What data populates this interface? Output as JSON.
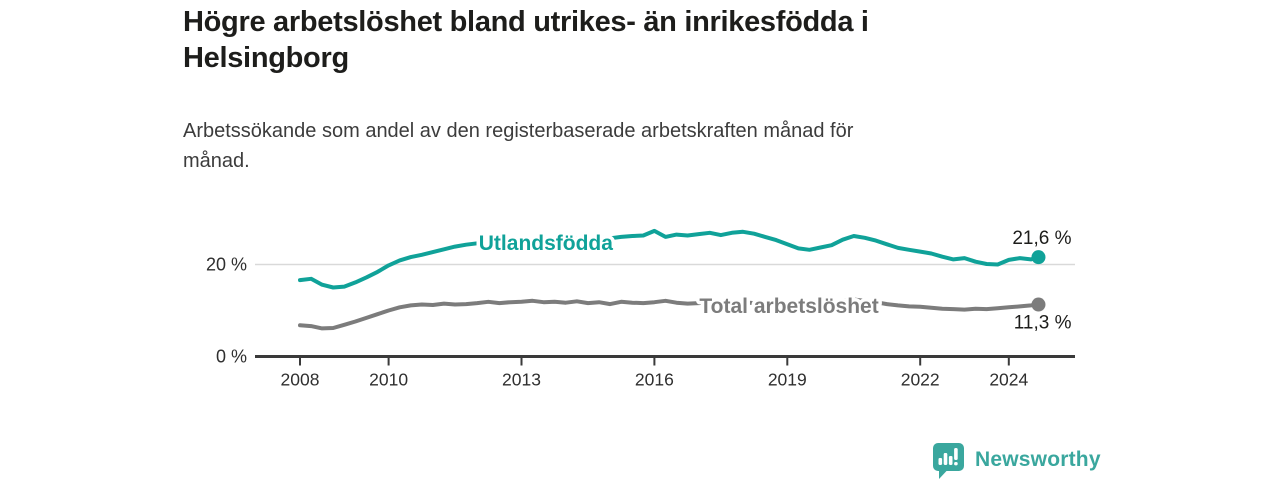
{
  "chart_data": {
    "type": "line",
    "title": "Högre arbetslöshet bland utrikes- än inrikesfödda i\nHelsingborg",
    "subtitle": "Arbetssökande som andel av den registerbaserade arbetskraften månad för\nmånad.",
    "grid": "horizontal-only",
    "legend_position": "inline-on-lines",
    "x_axis_range": [
      2007,
      2025.5
    ],
    "y_axis_range": [
      0,
      30
    ],
    "y_unit": "%",
    "x_ticks": [
      {
        "value": 2008,
        "label": "2008"
      },
      {
        "value": 2010,
        "label": "2010"
      },
      {
        "value": 2013,
        "label": "2013"
      },
      {
        "value": 2016,
        "label": "2016"
      },
      {
        "value": 2019,
        "label": "2019"
      },
      {
        "value": 2022,
        "label": "2022"
      },
      {
        "value": 2024,
        "label": "2024"
      }
    ],
    "y_ticks": [
      {
        "value": 0,
        "label": "0 %"
      },
      {
        "value": 20,
        "label": "20 %"
      }
    ],
    "x": [
      2008,
      2008.25,
      2008.5,
      2008.75,
      2009,
      2009.25,
      2009.5,
      2009.75,
      2010,
      2010.25,
      2010.5,
      2010.75,
      2011,
      2011.25,
      2011.5,
      2011.75,
      2012,
      2012.25,
      2012.5,
      2012.75,
      2013,
      2013.25,
      2013.5,
      2013.75,
      2014,
      2014.25,
      2014.5,
      2014.75,
      2015,
      2015.25,
      2015.5,
      2015.75,
      2016,
      2016.25,
      2016.5,
      2016.75,
      2017,
      2017.25,
      2017.5,
      2017.75,
      2018,
      2018.25,
      2018.5,
      2018.75,
      2019,
      2019.25,
      2019.5,
      2019.75,
      2020,
      2020.25,
      2020.5,
      2020.75,
      2021,
      2021.25,
      2021.5,
      2021.75,
      2022,
      2022.25,
      2022.5,
      2022.75,
      2023,
      2023.25,
      2023.5,
      2023.75,
      2024,
      2024.25,
      2024.5,
      2024.67
    ],
    "series": [
      {
        "id": "utlandsfodda",
        "name": "Utlandsfödda",
        "color": "#10a299",
        "end_label": "21,6 %",
        "end_value": 21.6,
        "inline_label": {
          "x": 2013.55,
          "y": 24.7
        },
        "values": [
          16.6,
          16.9,
          15.6,
          15.0,
          15.2,
          16.1,
          17.2,
          18.4,
          19.8,
          20.9,
          21.6,
          22.1,
          22.7,
          23.3,
          23.9,
          24.3,
          24.6,
          24.9,
          25.0,
          25.1,
          25.2,
          25.4,
          25.3,
          25.5,
          25.4,
          25.7,
          25.5,
          25.8,
          25.7,
          26.0,
          26.2,
          26.3,
          27.3,
          26.0,
          26.5,
          26.3,
          26.6,
          26.9,
          26.4,
          26.9,
          27.1,
          26.7,
          26.0,
          25.3,
          24.4,
          23.5,
          23.2,
          23.7,
          24.2,
          25.4,
          26.2,
          25.8,
          25.2,
          24.4,
          23.6,
          23.2,
          22.8,
          22.4,
          21.7,
          21.1,
          21.4,
          20.6,
          20.1,
          20.0,
          21.0,
          21.4,
          21.1,
          21.6
        ]
      },
      {
        "id": "total",
        "name": "Total arbetslöshet",
        "color": "#7c7c7c",
        "end_label": "11,3 %",
        "end_value": 11.3,
        "inline_label": {
          "x": 2019.04,
          "y": 11.0
        },
        "values": [
          6.8,
          6.6,
          6.1,
          6.2,
          6.9,
          7.6,
          8.4,
          9.2,
          10.0,
          10.7,
          11.1,
          11.3,
          11.2,
          11.5,
          11.3,
          11.4,
          11.6,
          11.9,
          11.6,
          11.8,
          11.9,
          12.1,
          11.8,
          11.9,
          11.7,
          12.0,
          11.6,
          11.8,
          11.4,
          11.9,
          11.7,
          11.6,
          11.8,
          12.1,
          11.7,
          11.5,
          11.6,
          11.8,
          11.5,
          11.7,
          11.8,
          11.6,
          11.3,
          11.1,
          11.0,
          10.8,
          10.9,
          11.1,
          11.3,
          12.1,
          12.4,
          12.1,
          11.8,
          11.4,
          11.1,
          10.9,
          10.8,
          10.6,
          10.4,
          10.3,
          10.2,
          10.4,
          10.3,
          10.5,
          10.7,
          10.9,
          11.1,
          11.3
        ]
      }
    ],
    "colors": {
      "axis": "#3a3a3a",
      "gridline": "#d9d9d9",
      "tick_text": "#2f2f2f",
      "end_label_text": "#1d1d1b"
    }
  },
  "footer": {
    "brand": "Newsworthy",
    "brand_color": "#3aa79e",
    "logo_icon": "speech-bubble-bar-chart-icon"
  }
}
